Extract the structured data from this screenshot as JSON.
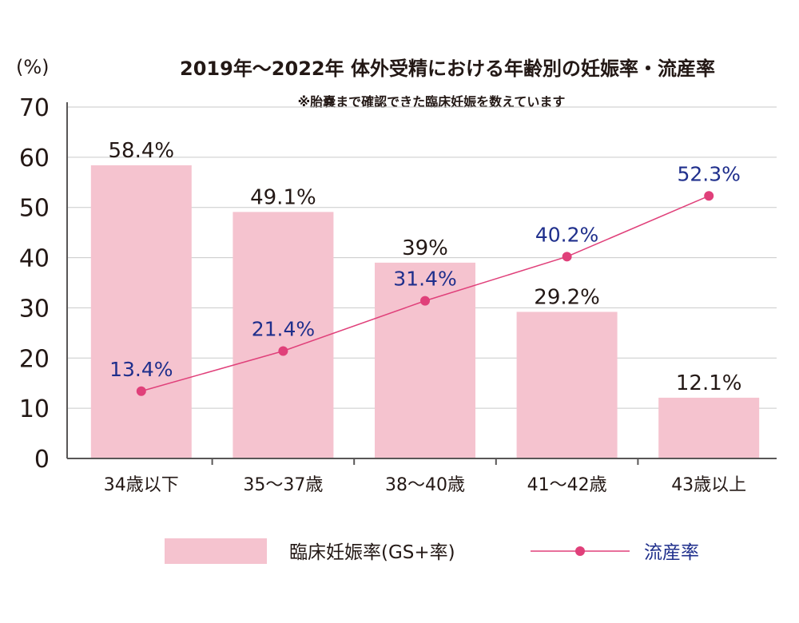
{
  "chart_data": {
    "type": "bar",
    "title": "2019年〜2022年 体外受精における年齢別の妊娠率・流産率",
    "subtitle": "※胎嚢まで確認できた臨床妊娠を数えています",
    "ylabel": "(%)",
    "xlabel": "",
    "ylim": [
      0,
      70
    ],
    "yticks": [
      0,
      10,
      20,
      30,
      40,
      50,
      60,
      70
    ],
    "grid": true,
    "legend_position": "bottom",
    "categories": [
      "34歳以下",
      "35〜37歳",
      "38〜40歳",
      "41〜42歳",
      "43歳以上"
    ],
    "series": [
      {
        "name": "臨床妊娠率(GS+率)",
        "type": "bar",
        "color": "#f5c3cf",
        "label_color": "#231815",
        "values": [
          58.4,
          49.1,
          39,
          29.2,
          12.1
        ],
        "labels": [
          "58.4%",
          "49.1%",
          "39%",
          "29.2%",
          "12.1%"
        ]
      },
      {
        "name": "流産率",
        "type": "line",
        "color": "#e0407a",
        "label_color": "#1f2f8c",
        "values": [
          13.4,
          21.4,
          31.4,
          40.2,
          52.3
        ],
        "labels": [
          "13.4%",
          "21.4%",
          "31.4%",
          "40.2%",
          "52.3%"
        ]
      }
    ]
  }
}
